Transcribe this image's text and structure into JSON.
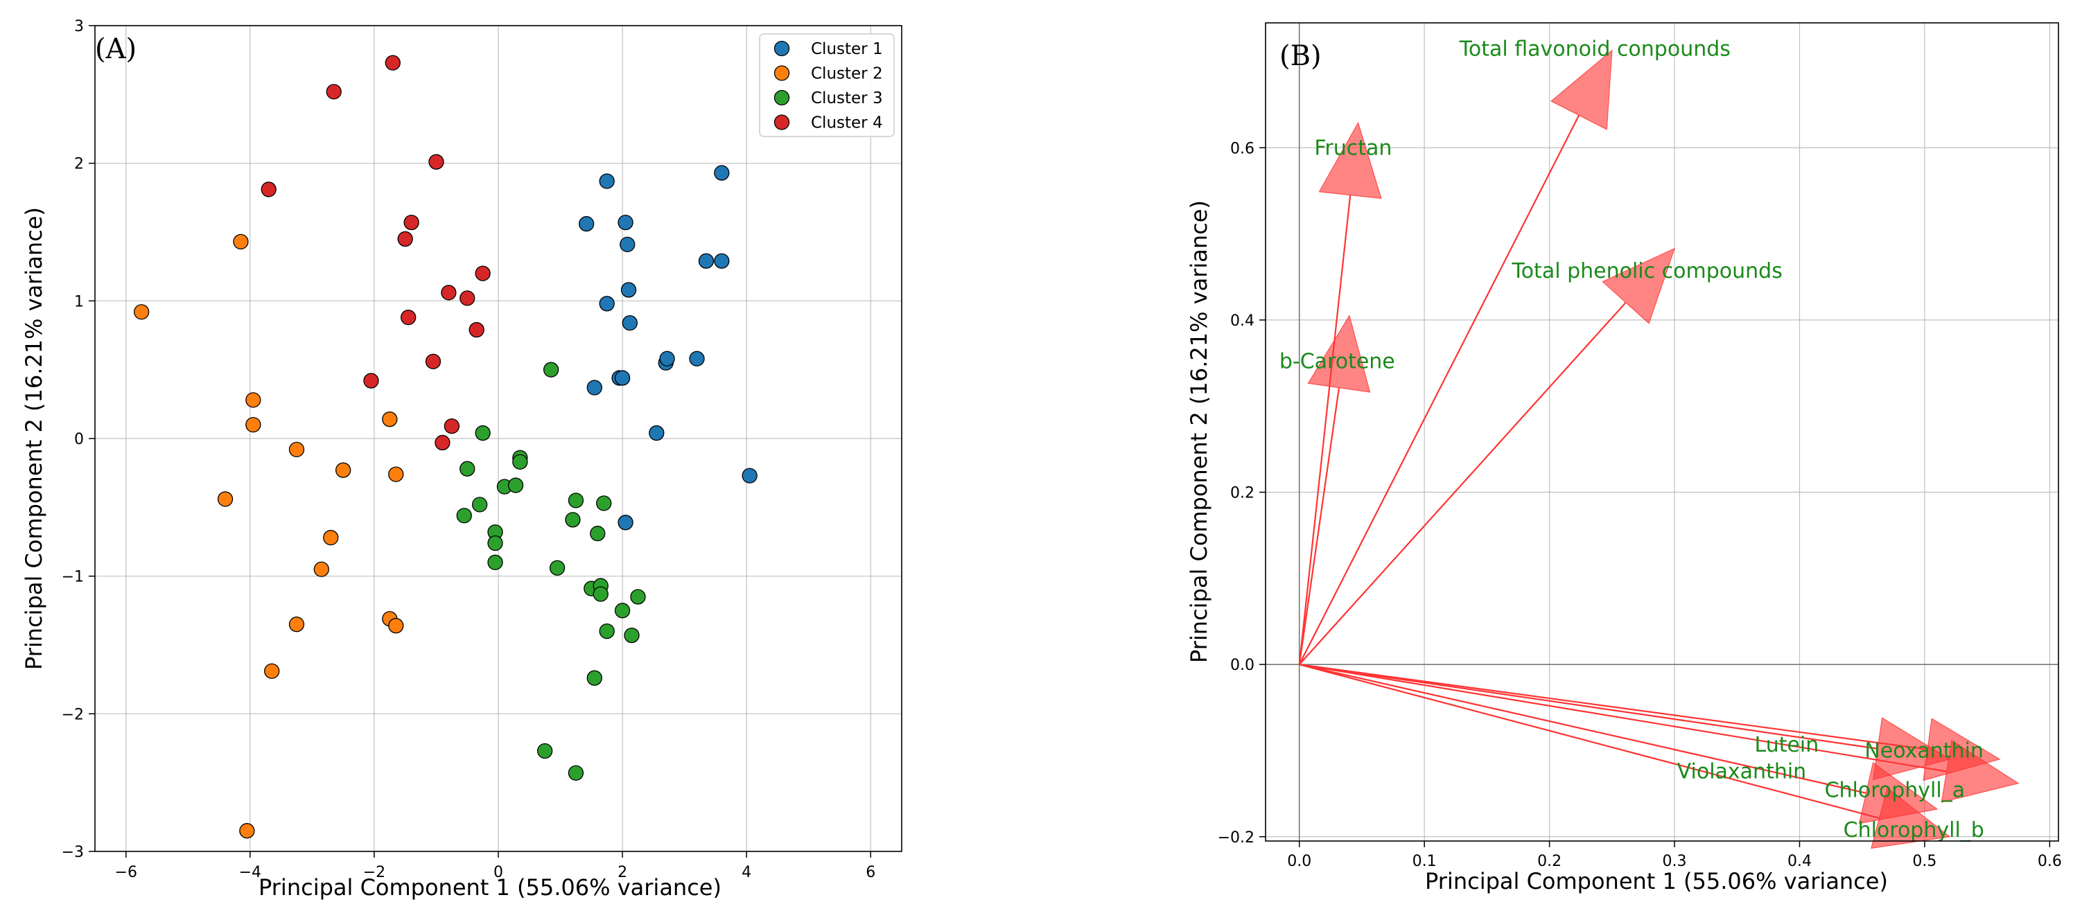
{
  "colors": {
    "cluster1": "#1f77b4",
    "cluster2": "#ff7f0e",
    "cluster3": "#2ca02c",
    "cluster4": "#d62728",
    "arrow": "#ff3333",
    "label": "#1a8a1a"
  },
  "chart_data": [
    {
      "type": "scatter",
      "panel_label": "(A)",
      "xlabel": "Principal Component 1 (55.06% variance)",
      "ylabel": "Principal Component 2 (16.21% variance)",
      "xlim": [
        -6.5,
        6.5
      ],
      "ylim": [
        -3,
        3
      ],
      "xticks": [
        -6,
        -4,
        -2,
        0,
        2,
        4,
        6
      ],
      "yticks": [
        -3,
        -2,
        -1,
        0,
        1,
        2,
        3
      ],
      "xtick_labels": [
        "−6",
        "−4",
        "−2",
        "0",
        "2",
        "4",
        "6"
      ],
      "ytick_labels": [
        "−3",
        "−2",
        "−1",
        "0",
        "1",
        "2",
        "3"
      ],
      "grid": true,
      "legend_position": "top-right",
      "series": [
        {
          "name": "Cluster 1",
          "color": "#1f77b4",
          "points": [
            [
              1.75,
              1.87
            ],
            [
              3.6,
              1.93
            ],
            [
              1.42,
              1.56
            ],
            [
              2.05,
              1.57
            ],
            [
              2.08,
              1.41
            ],
            [
              3.35,
              1.29
            ],
            [
              3.6,
              1.29
            ],
            [
              2.1,
              1.08
            ],
            [
              1.75,
              0.98
            ],
            [
              2.12,
              0.84
            ],
            [
              2.7,
              0.55
            ],
            [
              2.72,
              0.58
            ],
            [
              3.2,
              0.58
            ],
            [
              1.95,
              0.44
            ],
            [
              2.0,
              0.44
            ],
            [
              1.55,
              0.37
            ],
            [
              2.55,
              0.04
            ],
            [
              4.05,
              -0.27
            ],
            [
              2.05,
              -0.61
            ]
          ]
        },
        {
          "name": "Cluster 2",
          "color": "#ff7f0e",
          "points": [
            [
              -4.15,
              1.43
            ],
            [
              -5.75,
              0.92
            ],
            [
              -3.95,
              0.28
            ],
            [
              -3.95,
              0.1
            ],
            [
              -1.75,
              0.14
            ],
            [
              -3.25,
              -0.08
            ],
            [
              -2.5,
              -0.23
            ],
            [
              -1.65,
              -0.26
            ],
            [
              -4.4,
              -0.44
            ],
            [
              -2.7,
              -0.72
            ],
            [
              -2.85,
              -0.95
            ],
            [
              -1.75,
              -1.31
            ],
            [
              -1.65,
              -1.36
            ],
            [
              -3.25,
              -1.35
            ],
            [
              -3.65,
              -1.69
            ],
            [
              -4.05,
              -2.85
            ]
          ]
        },
        {
          "name": "Cluster 3",
          "color": "#2ca02c",
          "points": [
            [
              0.85,
              0.5
            ],
            [
              -0.25,
              0.04
            ],
            [
              0.35,
              -0.14
            ],
            [
              0.35,
              -0.17
            ],
            [
              -0.5,
              -0.22
            ],
            [
              0.1,
              -0.35
            ],
            [
              0.28,
              -0.34
            ],
            [
              -0.55,
              -0.56
            ],
            [
              -0.3,
              -0.48
            ],
            [
              1.25,
              -0.45
            ],
            [
              1.7,
              -0.47
            ],
            [
              1.2,
              -0.59
            ],
            [
              -0.05,
              -0.68
            ],
            [
              -0.05,
              -0.76
            ],
            [
              1.6,
              -0.69
            ],
            [
              -0.05,
              -0.9
            ],
            [
              0.95,
              -0.94
            ],
            [
              1.5,
              -1.09
            ],
            [
              1.65,
              -1.07
            ],
            [
              1.65,
              -1.13
            ],
            [
              2.0,
              -1.25
            ],
            [
              2.25,
              -1.15
            ],
            [
              1.75,
              -1.4
            ],
            [
              2.15,
              -1.43
            ],
            [
              1.55,
              -1.74
            ],
            [
              0.75,
              -2.27
            ],
            [
              1.25,
              -2.43
            ]
          ]
        },
        {
          "name": "Cluster 4",
          "color": "#d62728",
          "points": [
            [
              -1.7,
              2.73
            ],
            [
              -2.65,
              2.52
            ],
            [
              -3.7,
              1.81
            ],
            [
              -1.0,
              2.01
            ],
            [
              -1.4,
              1.57
            ],
            [
              -1.5,
              1.45
            ],
            [
              -0.25,
              1.2
            ],
            [
              -0.8,
              1.06
            ],
            [
              -0.5,
              1.02
            ],
            [
              -1.45,
              0.88
            ],
            [
              -0.35,
              0.79
            ],
            [
              -1.05,
              0.56
            ],
            [
              -2.05,
              0.42
            ],
            [
              -0.75,
              0.09
            ],
            [
              -0.9,
              -0.03
            ]
          ]
        }
      ]
    },
    {
      "type": "biplot",
      "panel_label": "(B)",
      "xlabel": "Principal Component 1 (55.06% variance)",
      "ylabel": "Principal Component 2 (16.21% variance)",
      "xlim": [
        -0.027,
        0.607
      ],
      "ylim": [
        -0.205,
        0.745
      ],
      "xticks": [
        0.0,
        0.1,
        0.2,
        0.3,
        0.4,
        0.5,
        0.6
      ],
      "yticks": [
        -0.2,
        0.0,
        0.2,
        0.4,
        0.6
      ],
      "xtick_labels": [
        "0.0",
        "0.1",
        "0.2",
        "0.3",
        "0.4",
        "0.5",
        "0.6"
      ],
      "ytick_labels": [
        "−0.2",
        "0.0",
        "0.2",
        "0.4",
        "0.6"
      ],
      "grid": true,
      "loadings": [
        {
          "name": "Total flavonoid conpounds",
          "x": 0.25,
          "y": 0.713,
          "label_x": 0.128,
          "label_y": 0.715
        },
        {
          "name": "Fructan",
          "x": 0.047,
          "y": 0.629,
          "label_x": 0.012,
          "label_y": 0.6
        },
        {
          "name": "Total phenolic compounds",
          "x": 0.3,
          "y": 0.483,
          "label_x": 0.17,
          "label_y": 0.457
        },
        {
          "name": "b-Carotene",
          "x": 0.04,
          "y": 0.405,
          "label_x": -0.016,
          "label_y": 0.352
        },
        {
          "name": "Neoxanthin",
          "x": 0.56,
          "y": -0.11,
          "label_x": 0.452,
          "label_y": -0.1
        },
        {
          "name": "Lutein",
          "x": 0.52,
          "y": -0.11,
          "label_x": 0.364,
          "label_y": -0.093
        },
        {
          "name": "Chlorophyll_a",
          "x": 0.575,
          "y": -0.138,
          "label_x": 0.42,
          "label_y": -0.146
        },
        {
          "name": "Violaxanthin",
          "x": 0.51,
          "y": -0.168,
          "label_x": 0.302,
          "label_y": -0.124
        },
        {
          "name": "Chlorophyll_b",
          "x": 0.52,
          "y": -0.2,
          "label_x": 0.435,
          "label_y": -0.192
        }
      ]
    }
  ]
}
